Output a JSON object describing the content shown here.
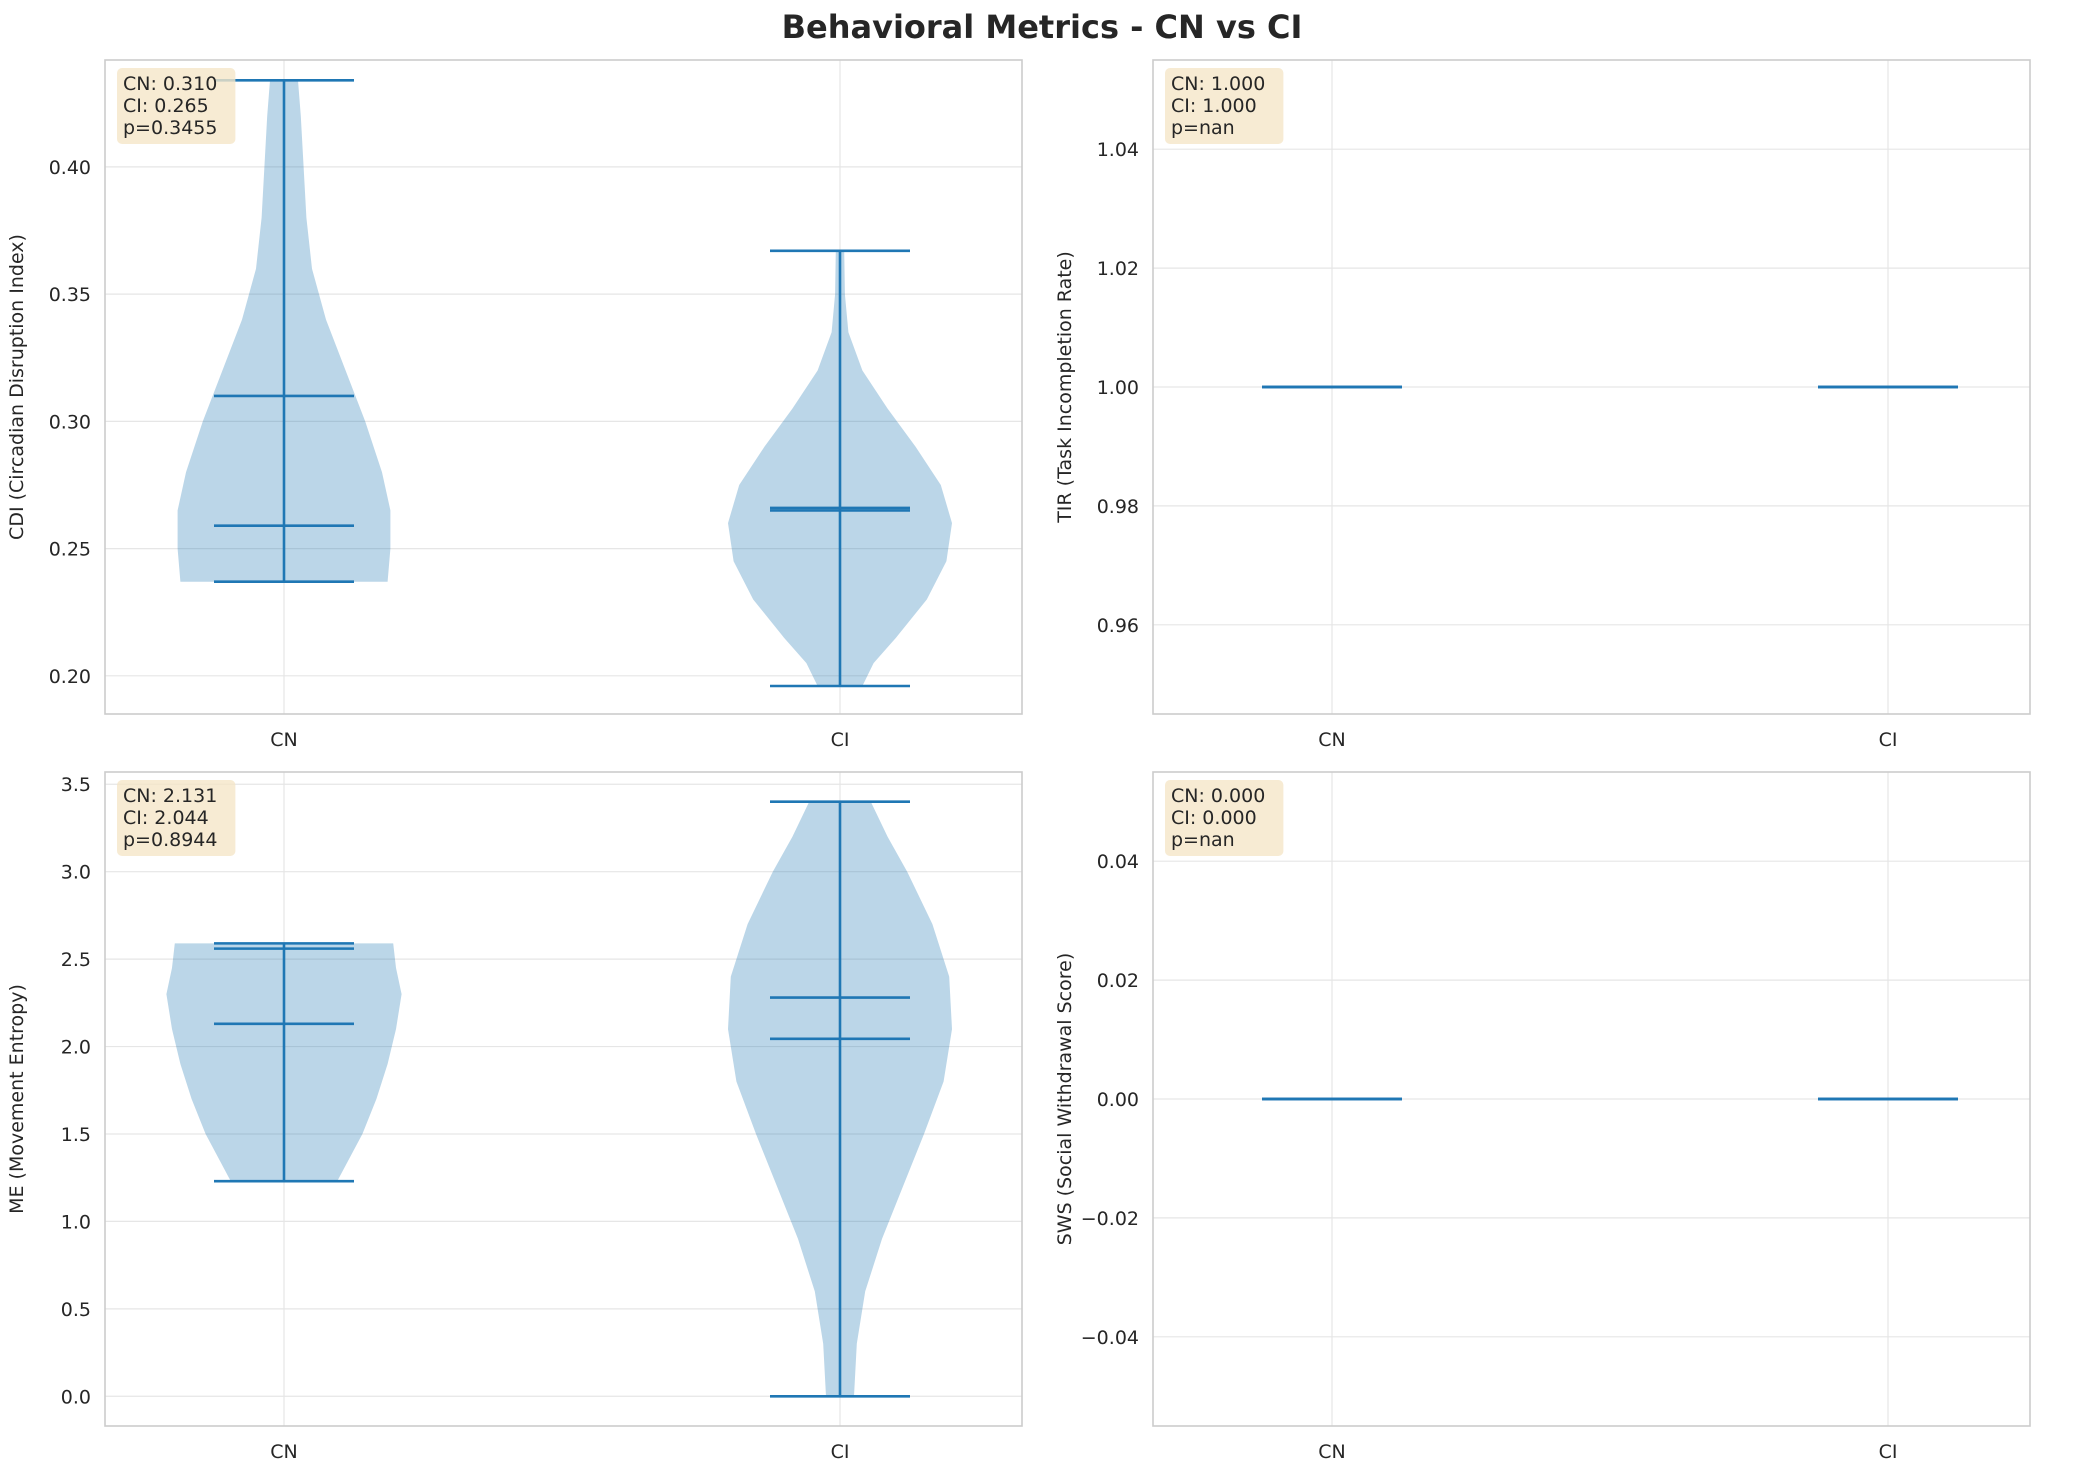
{
  "title": "Behavioral Metrics - CN vs CI",
  "colors": {
    "violin_fill": "#1f77b4",
    "violin_alpha": 0.3,
    "line": "#1f77b4",
    "grid": "#e6e6e6",
    "spine": "#cccccc",
    "annot_bg": "#f5e6c8"
  },
  "chart_data": [
    {
      "type": "violin",
      "categories": [
        "CN",
        "CI"
      ],
      "ylabel": "CDI (Circadian Disruption Index)",
      "ylim": [
        0.185,
        0.442
      ],
      "yticks": [
        0.2,
        0.25,
        0.3,
        0.35,
        0.4
      ],
      "ytick_labels": [
        "0.20",
        "0.25",
        "0.30",
        "0.35",
        "0.40"
      ],
      "grid": true,
      "annotation": [
        "CN: 0.310",
        "CI: 0.265",
        "p=0.3455"
      ],
      "groups": [
        {
          "name": "CN",
          "min": 0.237,
          "max": 0.434,
          "mean": 0.31,
          "median": 0.259,
          "density": [
            [
              0.237,
              0.74
            ],
            [
              0.25,
              0.76
            ],
            [
              0.265,
              0.76
            ],
            [
              0.28,
              0.7
            ],
            [
              0.3,
              0.58
            ],
            [
              0.32,
              0.44
            ],
            [
              0.34,
              0.3
            ],
            [
              0.36,
              0.2
            ],
            [
              0.38,
              0.16
            ],
            [
              0.4,
              0.14
            ],
            [
              0.42,
              0.12
            ],
            [
              0.434,
              0.1
            ]
          ]
        },
        {
          "name": "CI",
          "min": 0.196,
          "max": 0.367,
          "mean": 0.265,
          "median": 0.266,
          "density": [
            [
              0.196,
              0.16
            ],
            [
              0.205,
              0.24
            ],
            [
              0.215,
              0.4
            ],
            [
              0.23,
              0.62
            ],
            [
              0.245,
              0.76
            ],
            [
              0.26,
              0.8
            ],
            [
              0.275,
              0.72
            ],
            [
              0.29,
              0.54
            ],
            [
              0.305,
              0.34
            ],
            [
              0.32,
              0.16
            ],
            [
              0.335,
              0.06
            ],
            [
              0.35,
              0.035
            ],
            [
              0.367,
              0.03
            ]
          ]
        }
      ]
    },
    {
      "type": "violin",
      "categories": [
        "CN",
        "CI"
      ],
      "ylabel": "TIR (Task Incompletion Rate)",
      "ylim": [
        0.945,
        1.055
      ],
      "yticks": [
        0.96,
        0.98,
        1.0,
        1.02,
        1.04
      ],
      "ytick_labels": [
        "0.96",
        "0.98",
        "1.00",
        "1.02",
        "1.04"
      ],
      "grid": true,
      "annotation": [
        "CN: 1.000",
        "CI: 1.000",
        "p=nan"
      ],
      "groups": [
        {
          "name": "CN",
          "min": 1.0,
          "max": 1.0,
          "mean": 1.0,
          "median": 1.0,
          "density": []
        },
        {
          "name": "CI",
          "min": 1.0,
          "max": 1.0,
          "mean": 1.0,
          "median": 1.0,
          "density": []
        }
      ]
    },
    {
      "type": "violin",
      "categories": [
        "CN",
        "CI"
      ],
      "ylabel": "ME (Movement Entropy)",
      "ylim": [
        -0.17,
        3.57
      ],
      "yticks": [
        0.0,
        0.5,
        1.0,
        1.5,
        2.0,
        2.5,
        3.0,
        3.5
      ],
      "ytick_labels": [
        "0.0",
        "0.5",
        "1.0",
        "1.5",
        "2.0",
        "2.5",
        "3.0",
        "3.5"
      ],
      "grid": true,
      "annotation": [
        "CN: 2.131",
        "CI: 2.044",
        "p=0.8944"
      ],
      "groups": [
        {
          "name": "CN",
          "min": 1.23,
          "max": 2.59,
          "mean": 2.13,
          "median": 2.56,
          "density": [
            [
              1.23,
              0.38
            ],
            [
              1.35,
              0.46
            ],
            [
              1.5,
              0.56
            ],
            [
              1.7,
              0.66
            ],
            [
              1.9,
              0.74
            ],
            [
              2.1,
              0.8
            ],
            [
              2.3,
              0.84
            ],
            [
              2.45,
              0.8
            ],
            [
              2.59,
              0.78
            ]
          ]
        },
        {
          "name": "CI",
          "min": 0.0,
          "max": 3.4,
          "mean": 2.044,
          "median": 2.28,
          "density": [
            [
              0.0,
              0.1
            ],
            [
              0.3,
              0.12
            ],
            [
              0.6,
              0.18
            ],
            [
              0.9,
              0.3
            ],
            [
              1.2,
              0.45
            ],
            [
              1.5,
              0.6
            ],
            [
              1.8,
              0.74
            ],
            [
              2.1,
              0.8
            ],
            [
              2.4,
              0.78
            ],
            [
              2.7,
              0.66
            ],
            [
              3.0,
              0.48
            ],
            [
              3.2,
              0.34
            ],
            [
              3.4,
              0.22
            ]
          ]
        }
      ]
    },
    {
      "type": "violin",
      "categories": [
        "CN",
        "CI"
      ],
      "ylabel": "SWS (Social Withdrawal Score)",
      "ylim": [
        -0.055,
        0.055
      ],
      "yticks": [
        -0.04,
        -0.02,
        0.0,
        0.02,
        0.04
      ],
      "ytick_labels": [
        "−0.04",
        "−0.02",
        "0.00",
        "0.02",
        "0.04"
      ],
      "grid": true,
      "annotation": [
        "CN: 0.000",
        "CI: 0.000",
        "p=nan"
      ],
      "groups": [
        {
          "name": "CN",
          "min": 0.0,
          "max": 0.0,
          "mean": 0.0,
          "median": 0.0,
          "density": []
        },
        {
          "name": "CI",
          "min": 0.0,
          "max": 0.0,
          "mean": 0.0,
          "median": 0.0,
          "density": []
        }
      ]
    }
  ]
}
